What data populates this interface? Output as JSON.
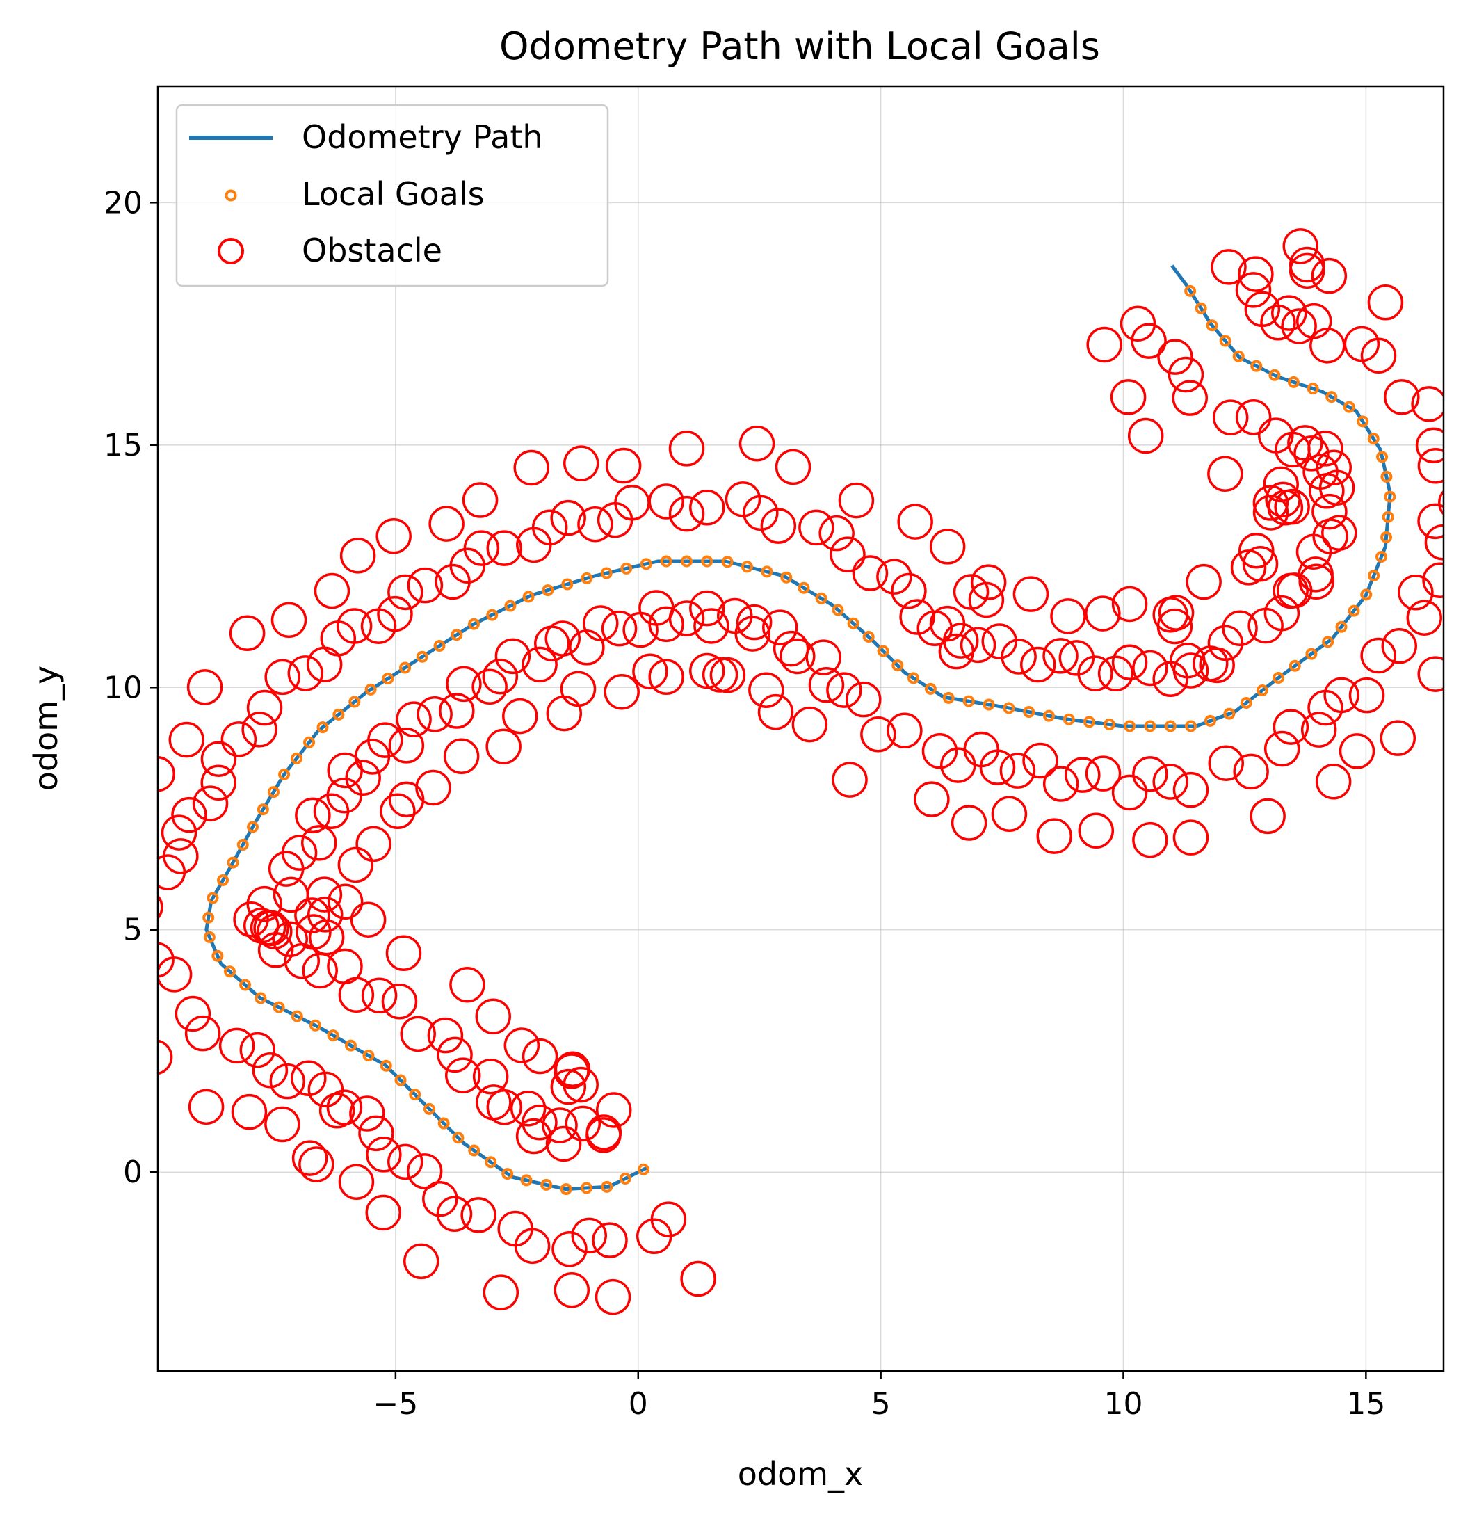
{
  "chart_data": {
    "type": "scatter",
    "title": "Odometry Path with Local Goals",
    "xlabel": "odom_x",
    "ylabel": "odom_y",
    "xlim": [
      -9.9,
      16.6
    ],
    "ylim": [
      -4.1,
      22.4
    ],
    "xticks": [
      -5,
      0,
      5,
      10,
      15
    ],
    "yticks": [
      0,
      5,
      10,
      15,
      20
    ],
    "xtick_labels": [
      "−5",
      "0",
      "5",
      "10",
      "15"
    ],
    "ytick_labels": [
      "0",
      "5",
      "10",
      "15",
      "20"
    ],
    "grid": true,
    "legend_position": "top-left",
    "colors": {
      "path": "#1f77b4",
      "goals": "#ff7f0e",
      "obstacle": "#ff0000"
    },
    "legend": [
      "Odometry Path",
      "Local Goals",
      "Obstacle"
    ],
    "series": [
      {
        "name": "Odometry Path",
        "type": "line",
        "points": [
          [
            0.2,
            0.1
          ],
          [
            -0.6,
            -0.3
          ],
          [
            -1.5,
            -0.35
          ],
          [
            -2.6,
            -0.1
          ],
          [
            -3.6,
            0.6
          ],
          [
            -4.3,
            1.3
          ],
          [
            -5.2,
            2.2
          ],
          [
            -6.6,
            3.0
          ],
          [
            -7.8,
            3.6
          ],
          [
            -8.6,
            4.3
          ],
          [
            -8.9,
            5.0
          ],
          [
            -8.8,
            5.6
          ],
          [
            -8.4,
            6.3
          ],
          [
            -7.9,
            7.2
          ],
          [
            -7.3,
            8.2
          ],
          [
            -6.6,
            9.1
          ],
          [
            -5.6,
            9.9
          ],
          [
            -4.5,
            10.6
          ],
          [
            -3.4,
            11.3
          ],
          [
            -2.2,
            11.9
          ],
          [
            -0.9,
            12.3
          ],
          [
            0.4,
            12.6
          ],
          [
            1.8,
            12.6
          ],
          [
            3.0,
            12.3
          ],
          [
            4.0,
            11.7
          ],
          [
            4.8,
            11.0
          ],
          [
            5.5,
            10.3
          ],
          [
            6.3,
            9.8
          ],
          [
            7.5,
            9.6
          ],
          [
            8.8,
            9.35
          ],
          [
            10.0,
            9.2
          ],
          [
            11.5,
            9.2
          ],
          [
            12.3,
            9.5
          ],
          [
            13.2,
            10.2
          ],
          [
            14.3,
            11.0
          ],
          [
            15.0,
            11.9
          ],
          [
            15.4,
            12.9
          ],
          [
            15.5,
            14.0
          ],
          [
            15.3,
            14.9
          ],
          [
            14.8,
            15.7
          ],
          [
            14.1,
            16.1
          ],
          [
            13.2,
            16.4
          ],
          [
            12.4,
            16.8
          ],
          [
            11.8,
            17.5
          ],
          [
            11.3,
            18.3
          ],
          [
            11.0,
            18.7
          ]
        ]
      },
      {
        "name": "Local Goals",
        "type": "scatter",
        "sample_spacing": 0.42
      },
      {
        "name": "Obstacle",
        "type": "scatter",
        "offset_inner": 1.15,
        "offset_outer": 2.3
      }
    ]
  }
}
